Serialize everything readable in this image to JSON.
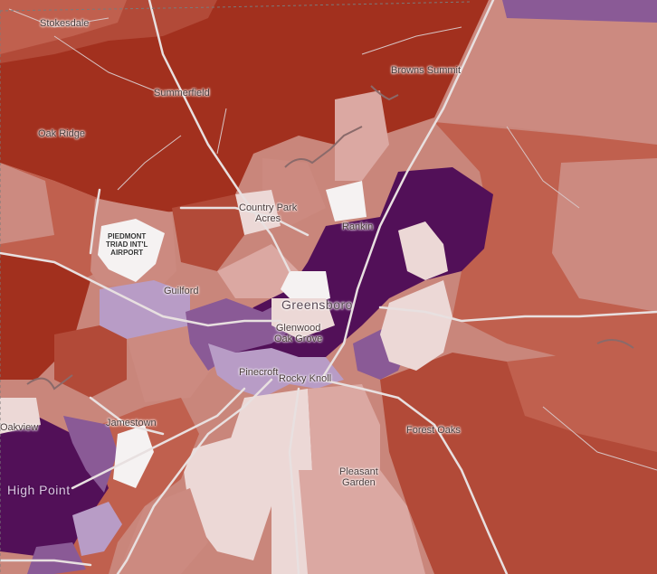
{
  "map": {
    "labels": {
      "stokesdale": "Stokesdale",
      "summerfield": "Summerfield",
      "browns_summit": "Browns Summit",
      "oak_ridge": "Oak Ridge",
      "country_park_1": "Country Park",
      "country_park_2": "Acres",
      "rankin": "Rankin",
      "airport_1": "PIEDMONT",
      "airport_2": "TRIAD INT'L",
      "airport_3": "AIRPORT",
      "guilford": "Guilford",
      "greensboro": "Greensboro",
      "glenwood": "Glenwood",
      "oak_grove": "Oak Grove",
      "pinecroft": "Pinecroft",
      "rocky_knoll": "Rocky Knoll",
      "oakview": "Oakview",
      "jamestown": "Jamestown",
      "forest_oaks": "Forest Oaks",
      "pleasant_1": "Pleasant",
      "pleasant_2": "Garden",
      "high_point": "High Point"
    },
    "colors": {
      "dark_red": "#a2301e",
      "red": "#b24a38",
      "mid_red": "#c0604e",
      "salmon": "#cc8a80",
      "light_pink": "#dba8a2",
      "pale": "#ecd8d6",
      "white": "#f5f2f2",
      "light_purple": "#b89cc6",
      "mid_purple": "#8a5a96",
      "dark_purple": "#521058",
      "road": "#e8e0e0"
    }
  }
}
